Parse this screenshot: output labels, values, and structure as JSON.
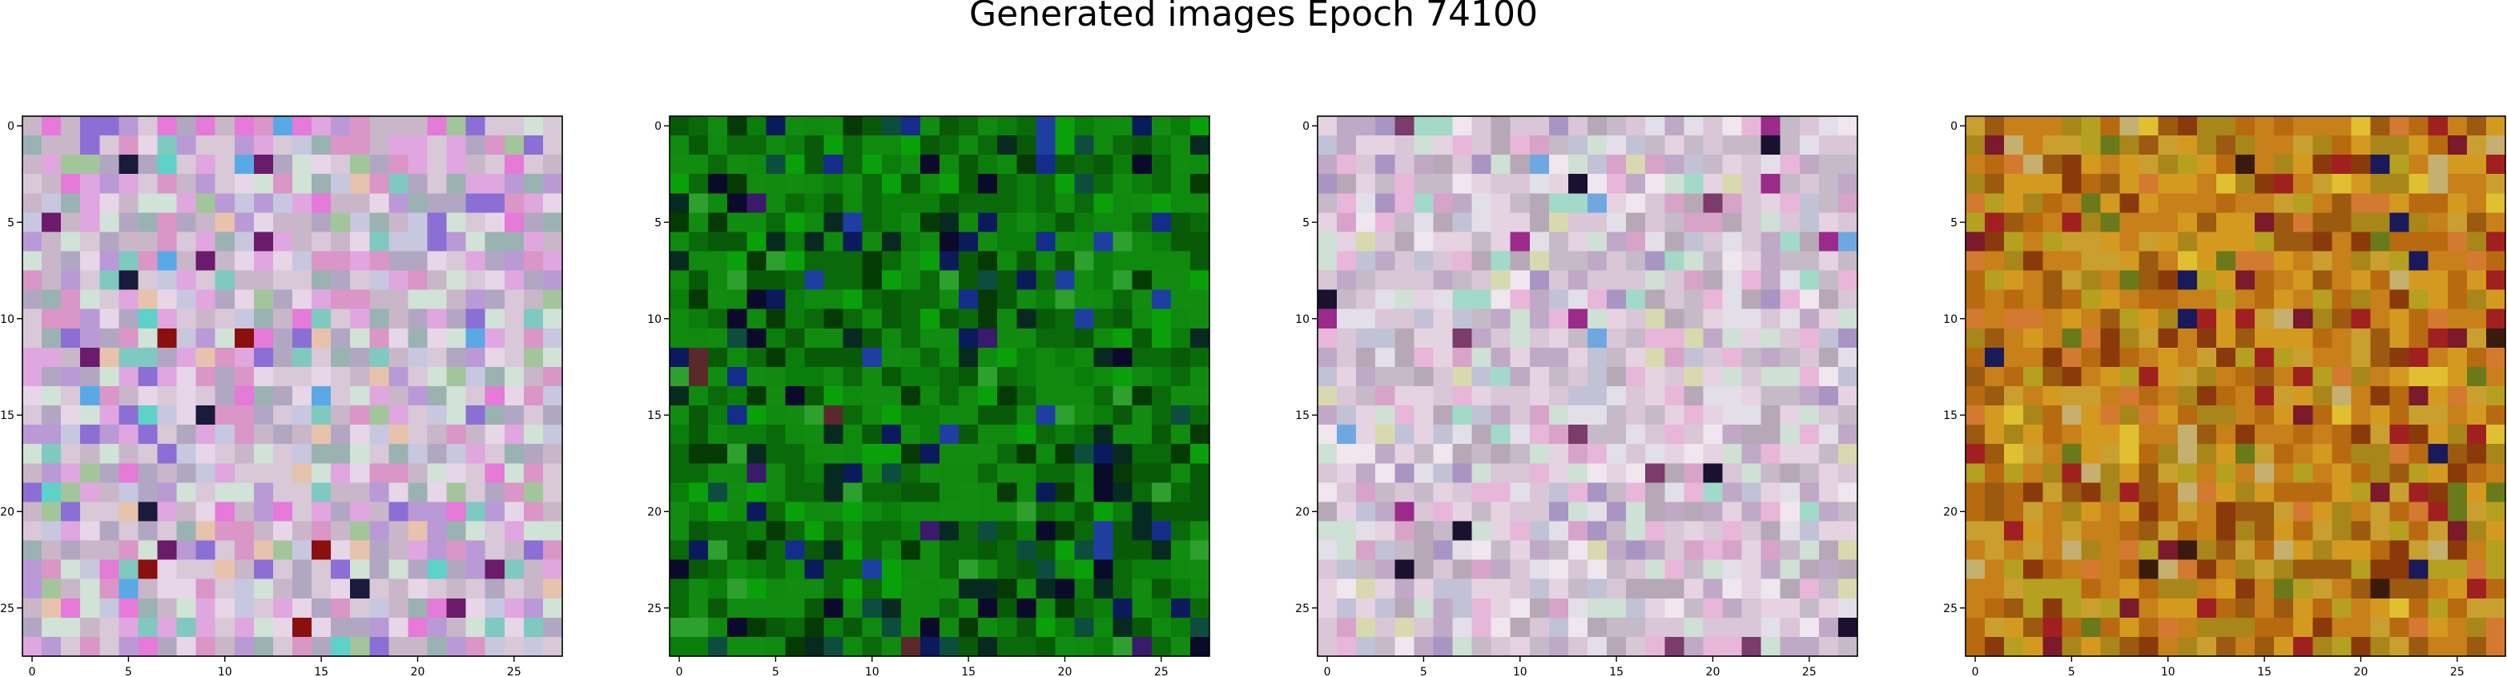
{
  "title": "Generated images Epoch 74100",
  "chart_data": {
    "type": "heatmap",
    "title": "Generated images Epoch 74100",
    "grid": false,
    "panels": [
      {
        "name": "",
        "grid_size": [
          28,
          28
        ],
        "xticks": [
          0,
          5,
          10,
          15,
          20,
          25
        ],
        "yticks": [
          0,
          5,
          10,
          15,
          20,
          25
        ],
        "xlim": [
          -0.5,
          27.5
        ],
        "ylim": [
          27.5,
          -0.5
        ],
        "palette": [
          "#c9b7c9",
          "#e0a6e0",
          "#d8c8d8",
          "#b2a7c2",
          "#e7d6e7",
          "#b99ad6",
          "#d1e2d6",
          "#9bb2b2",
          "#d996c6",
          "#c7c7e0",
          "#8b6fd4",
          "#7fc9c0",
          "#e57ad8",
          "#a3c59b",
          "#6b1b6b",
          "#1a1a3a",
          "#8a1010",
          "#5aa9e6",
          "#e7c3ad",
          "#5ed1c9"
        ],
        "weights": [
          14,
          12,
          14,
          10,
          12,
          8,
          8,
          6,
          8,
          8,
          3,
          3,
          4,
          3,
          1,
          1,
          1,
          1,
          3,
          1
        ]
      },
      {
        "name": "",
        "grid_size": [
          28,
          28
        ],
        "xticks": [
          0,
          5,
          10,
          15,
          20,
          25
        ],
        "yticks": [
          0,
          5,
          10,
          15,
          20,
          25
        ],
        "xlim": [
          -0.5,
          27.5
        ],
        "ylim": [
          27.5,
          -0.5
        ],
        "palette": [
          "#0f8a0f",
          "#0a6a0a",
          "#118c11",
          "#085a08",
          "#0aa00a",
          "#053a05",
          "#0b7d0b",
          "#062a1f",
          "#0a1a5a",
          "#142d8a",
          "#0a0a2a",
          "#1f3fa0",
          "#0d4d3d",
          "#5a2a2a",
          "#2ea02e",
          "#3a1a6a"
        ],
        "weights": [
          18,
          14,
          14,
          10,
          8,
          6,
          10,
          4,
          3,
          3,
          2,
          2,
          2,
          1,
          3,
          1
        ]
      },
      {
        "name": "",
        "grid_size": [
          28,
          28
        ],
        "xticks": [
          0,
          5,
          10,
          15,
          20,
          25
        ],
        "yticks": [
          0,
          5,
          10,
          15,
          20,
          25
        ],
        "xlim": [
          -0.5,
          27.5
        ],
        "ylim": [
          27.5,
          -0.5
        ],
        "palette": [
          "#d9c6d6",
          "#e5d3e2",
          "#c6b9c8",
          "#e8b6d9",
          "#bfa9c6",
          "#cfe0d4",
          "#e3dfe8",
          "#b7a8b7",
          "#d7a3c8",
          "#c2c2d6",
          "#a995c4",
          "#f0e6ee",
          "#7b3b6b",
          "#1a1030",
          "#a3d9c8",
          "#d9d9b0",
          "#9b2b8b",
          "#6fa8e0"
        ],
        "weights": [
          16,
          14,
          12,
          8,
          10,
          8,
          10,
          8,
          6,
          8,
          4,
          6,
          1,
          1,
          3,
          3,
          1,
          1
        ]
      },
      {
        "name": "",
        "grid_size": [
          28,
          28
        ],
        "xticks": [
          0,
          5,
          10,
          15,
          20,
          25
        ],
        "yticks": [
          0,
          5,
          10,
          15,
          20,
          25
        ],
        "xlim": [
          -0.5,
          27.5
        ],
        "ylim": [
          27.5,
          -0.5
        ],
        "palette": [
          "#c7801a",
          "#b86a10",
          "#d49a20",
          "#a8861a",
          "#9b5a10",
          "#c9a030",
          "#8a3a0a",
          "#b5a020",
          "#a02020",
          "#d47a30",
          "#6a7a1a",
          "#3a1a0a",
          "#1a1a5a",
          "#e0c030",
          "#7a1a2a",
          "#c5b070"
        ],
        "weights": [
          16,
          14,
          12,
          10,
          10,
          8,
          6,
          6,
          3,
          6,
          3,
          1,
          1,
          2,
          2,
          3
        ]
      }
    ]
  }
}
